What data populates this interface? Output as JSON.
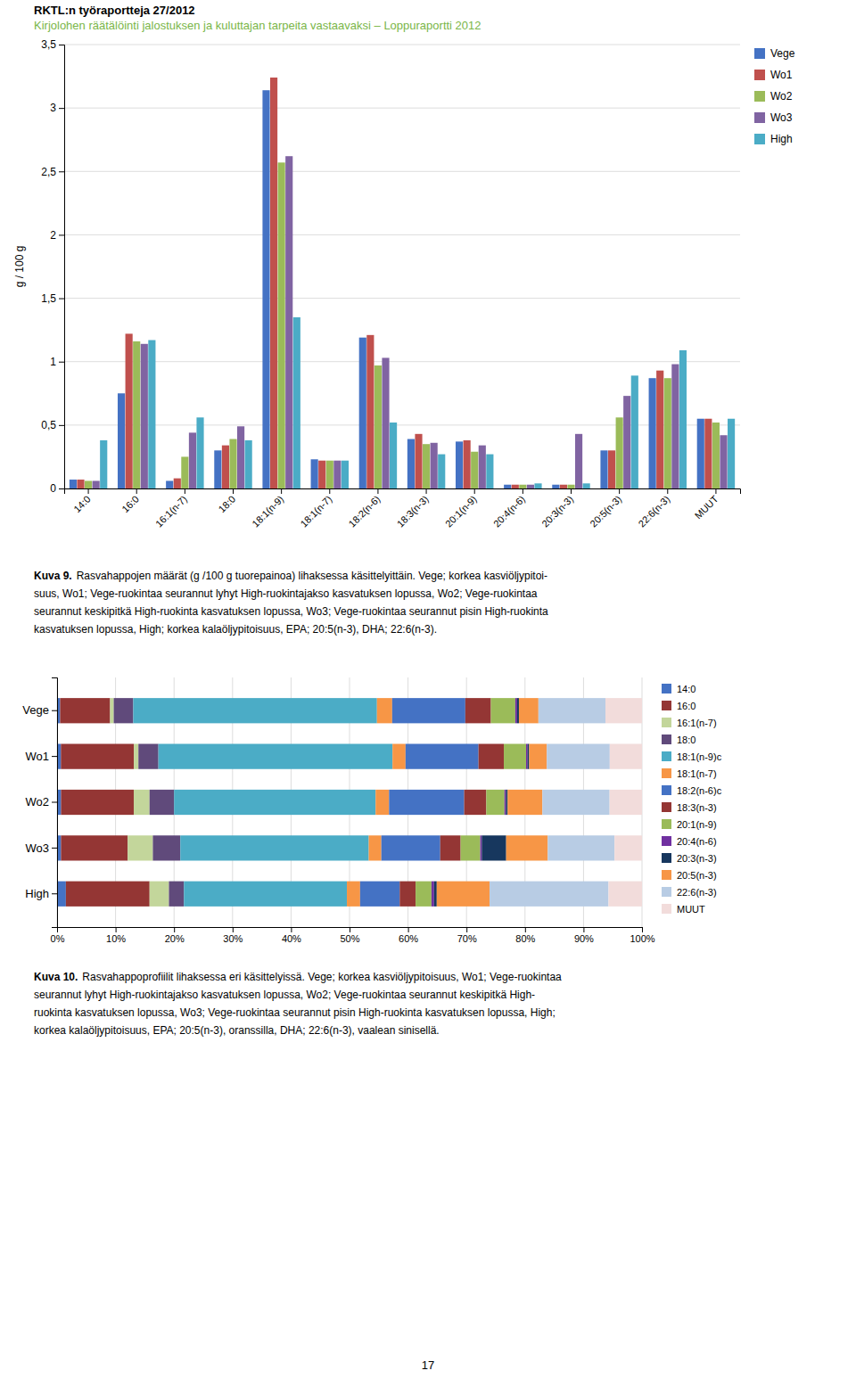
{
  "header": [
    {
      "text": "RKTL:n työraportteja 27/2012",
      "color": "#000000"
    },
    {
      "text": "Kirjolohen räätälöinti jalostuksen ja kuluttajan tarpeita vastaavaksi – Loppuraportti 2012",
      "color": "#7ab648"
    }
  ],
  "chart_data": [
    {
      "type": "bar",
      "categories": [
        "14:0",
        "16:0",
        "16:1(n-7)",
        "18:0",
        "18:1(n-9)",
        "18:1(n-7)",
        "18:2(n-6)",
        "18:3(n-3)",
        "20:1(n-9)",
        "20:4(n-6)",
        "20:3(n-3)",
        "20:5(n-3)",
        "22:6(n-3)",
        "MUUT"
      ],
      "series": [
        {
          "name": "Vege",
          "color": "#4472c4",
          "values": [
            0.07,
            0.75,
            0.06,
            0.3,
            3.14,
            0.23,
            1.19,
            0.39,
            0.37,
            0.03,
            0.03,
            0.3,
            0.87,
            0.55
          ]
        },
        {
          "name": "Wo1",
          "color": "#c0504d",
          "values": [
            0.07,
            1.22,
            0.08,
            0.34,
            3.24,
            0.22,
            1.21,
            0.43,
            0.38,
            0.03,
            0.03,
            0.3,
            0.93,
            0.55
          ]
        },
        {
          "name": "Wo2",
          "color": "#9bbb59",
          "values": [
            0.06,
            1.16,
            0.25,
            0.39,
            2.57,
            0.22,
            0.97,
            0.35,
            0.29,
            0.03,
            0.03,
            0.56,
            0.87,
            0.52
          ]
        },
        {
          "name": "Wo3",
          "color": "#8064a2",
          "values": [
            0.06,
            1.14,
            0.44,
            0.49,
            2.62,
            0.22,
            1.03,
            0.36,
            0.34,
            0.03,
            0.43,
            0.73,
            0.98,
            0.42
          ]
        },
        {
          "name": "High",
          "color": "#4bacc6",
          "values": [
            0.38,
            1.17,
            0.56,
            0.38,
            1.35,
            0.22,
            0.52,
            0.27,
            0.27,
            0.04,
            0.04,
            0.89,
            1.09,
            0.55
          ]
        }
      ],
      "ylabel": "g / 100 g",
      "ylim": [
        0,
        3.5
      ],
      "yticks": [
        0,
        {
          "value": 0.5,
          "label": "0,5"
        },
        1,
        {
          "value": 1.5,
          "label": "1,5"
        },
        2,
        {
          "value": 2.5,
          "label": "2,5"
        },
        3,
        {
          "value": 3.5,
          "label": "3,5"
        }
      ],
      "grid": true,
      "legend": "right"
    },
    {
      "type": "bar",
      "orientation": "horizontal",
      "stacked": true,
      "categories": [
        "High",
        "Wo3",
        "Wo2",
        "Wo1",
        "Vege"
      ],
      "series": [
        {
          "name": "14:0",
          "color": "#4472c4",
          "values": [
            1.506,
            0.671,
            0.676,
            0.656,
            0.521
          ]
        },
        {
          "name": "16:0",
          "color": "#943634",
          "values": [
            14.307,
            11.409,
            12.432,
            12.467,
            8.542
          ]
        },
        {
          "name": "16:1(n-7)",
          "color": "#c3d69b",
          "values": [
            3.313,
            4.295,
            2.703,
            0.787,
            0.625
          ]
        },
        {
          "name": "18:0",
          "color": "#604a7b",
          "values": [
            2.56,
            4.698,
            4.189,
            3.412,
            3.333
          ]
        },
        {
          "name": "18:1(n-9)c",
          "color": "#4bacc6",
          "values": [
            27.861,
            32.215,
            34.459,
            40.026,
            41.667
          ]
        },
        {
          "name": "18:1(n-7)",
          "color": "#f79646",
          "values": [
            2.259,
            2.148,
            2.297,
            2.231,
            2.604
          ]
        },
        {
          "name": "18:2(n-6)c",
          "color": "#4472c4",
          "values": [
            6.777,
            10.067,
            12.838,
            12.467,
            12.5
          ]
        },
        {
          "name": "18:3(n-3)",
          "color": "#943634",
          "values": [
            2.711,
            3.49,
            3.784,
            4.331,
            4.375
          ]
        },
        {
          "name": "20:1(n-9)",
          "color": "#9bbb59",
          "values": [
            2.711,
            3.356,
            3.108,
            3.806,
            4.167
          ]
        },
        {
          "name": "20:4(n-6)",
          "color": "#7030a0",
          "values": [
            0.452,
            0.268,
            0.27,
            0.262,
            0.312
          ]
        },
        {
          "name": "20:3(n-3)",
          "color": "#17375e",
          "values": [
            0.452,
            4.161,
            0.27,
            0.262,
            0.312
          ]
        },
        {
          "name": "20:5(n-3)",
          "color": "#f79646",
          "values": [
            9.036,
            7.114,
            5.946,
            3.018,
            3.333
          ]
        },
        {
          "name": "22:6(n-3)",
          "color": "#b8cce4",
          "values": [
            20.331,
            11.409,
            11.486,
            10.761,
            11.458
          ]
        },
        {
          "name": "MUUT",
          "color": "#f2dcdb",
          "values": [
            5.723,
            4.698,
            5.541,
            5.512,
            6.25
          ]
        }
      ],
      "xlim": [
        0,
        100
      ],
      "xticks": [
        {
          "value": 0,
          "label": "0%"
        },
        {
          "value": 10,
          "label": "10%"
        },
        {
          "value": 20,
          "label": "20%"
        },
        {
          "value": 30,
          "label": "30%"
        },
        {
          "value": 40,
          "label": "40%"
        },
        {
          "value": 50,
          "label": "50%"
        },
        {
          "value": 60,
          "label": "60%"
        },
        {
          "value": 70,
          "label": "70%"
        },
        {
          "value": 80,
          "label": "80%"
        },
        {
          "value": 90,
          "label": "90%"
        },
        {
          "value": 100,
          "label": "100%"
        }
      ],
      "grid": true,
      "legend": "right"
    }
  ],
  "captions": [
    {
      "bold": "Kuva 9.",
      "lines": [
        "Rasvahappojen määrät (g /100 g tuorepainoa) lihaksessa käsittelyittäin. Vege; korkea kasviöljypitoi-",
        "suus, Wo1; Vege-ruokintaa seurannut lyhyt High-ruokintajakso kasvatuksen lopussa, Wo2; Vege-ruokintaa",
        "seurannut keskipitkä High-ruokinta kasvatuksen lopussa, Wo3; Vege-ruokintaa seurannut pisin High-ruokinta",
        "kasvatuksen lopussa, High; korkea kalaöljypitoisuus, EPA; 20:5(n-3), DHA; 22:6(n-3)."
      ]
    },
    {
      "bold": "Kuva 10.",
      "lines": [
        "Rasvahappoprofiilit lihaksessa eri käsittelyissä. Vege; korkea kasviöljypitoisuus, Wo1; Vege-ruokintaa",
        "seurannut lyhyt High-ruokintajakso kasvatuksen lopussa, Wo2; Vege-ruokintaa seurannut keskipitkä High-",
        "ruokinta kasvatuksen lopussa, Wo3; Vege-ruokintaa seurannut pisin High-ruokinta kasvatuksen lopussa, High;",
        "korkea kalaöljypitoisuus, EPA; 20:5(n-3), oranssilla, DHA; 22:6(n-3), vaalean sinisellä."
      ]
    }
  ],
  "page_number": "17"
}
